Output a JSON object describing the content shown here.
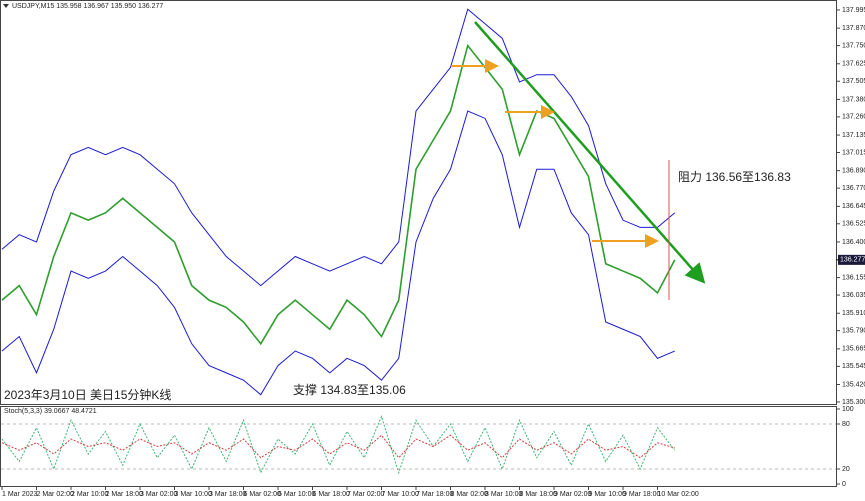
{
  "chart_data": [
    {
      "type": "line",
      "title": "USDJPY,M15  135.958 136.967 135.950 136.277",
      "annotations": [
        "2023年3月10日 美日15分钟K线",
        "支撑 134.83至135.06",
        "阻力 136.56至136.83"
      ],
      "last_price": 136.277,
      "categories": [
        "1 Mar 2023",
        null,
        "2 Mar 02:00",
        null,
        "2 Mar 10:00",
        null,
        "2 Mar 18:00",
        null,
        "3 Mar 02:00",
        null,
        "3 Mar 10:00",
        null,
        "3 Mar 18:00",
        null,
        "6 Mar 02:00",
        null,
        "6 Mar 10:00",
        null,
        "6 Mar 18:00",
        null,
        "7 Mar 02:00",
        null,
        "7 Mar 10:00",
        null,
        "7 Mar 18:00",
        null,
        "8 Mar 02:00",
        null,
        "8 Mar 10:00",
        null,
        "8 Mar 18:00",
        null,
        "9 Mar 02:00",
        null,
        "9 Mar 10:00",
        null,
        "9 Mar 18:00",
        null,
        "10 Mar 02:00",
        null
      ],
      "series": [
        {
          "color": "#2e9e2e",
          "values": [
            136.0,
            136.1,
            135.9,
            136.3,
            136.6,
            136.55,
            136.6,
            136.7,
            136.6,
            136.5,
            136.4,
            136.1,
            136.0,
            135.95,
            135.85,
            135.7,
            135.9,
            136.0,
            135.9,
            135.8,
            136.0,
            135.9,
            135.75,
            136.0,
            136.9,
            137.1,
            137.3,
            137.75,
            137.6,
            137.45,
            137.0,
            137.3,
            137.25,
            137.05,
            136.85,
            136.25,
            136.2,
            136.15,
            136.05,
            136.277
          ]
        },
        {
          "color": "#1a1ad6",
          "values": [
            136.35,
            136.45,
            136.4,
            136.75,
            137.0,
            137.05,
            137.0,
            137.05,
            137.0,
            136.9,
            136.8,
            136.6,
            136.45,
            136.3,
            136.2,
            136.1,
            136.2,
            136.3,
            136.25,
            136.2,
            136.25,
            136.3,
            136.25,
            136.4,
            137.3,
            137.45,
            137.6,
            138.0,
            137.9,
            137.8,
            137.5,
            137.55,
            137.55,
            137.4,
            137.2,
            136.8,
            136.55,
            136.5,
            136.5,
            136.6
          ]
        },
        {
          "color": "#1a1ad6",
          "values": [
            135.65,
            135.75,
            135.5,
            135.8,
            136.2,
            136.15,
            136.2,
            136.3,
            136.2,
            136.1,
            135.95,
            135.7,
            135.55,
            135.5,
            135.45,
            135.35,
            135.55,
            135.65,
            135.6,
            135.5,
            135.6,
            135.55,
            135.45,
            135.6,
            136.4,
            136.7,
            136.9,
            137.3,
            137.25,
            137.0,
            136.5,
            136.9,
            136.9,
            136.6,
            136.45,
            135.85,
            135.8,
            135.75,
            135.6,
            135.65
          ]
        }
      ],
      "ylim": [
        135.286,
        138.036
      ],
      "yticks": [
        137.995,
        {
          "value": 137.87,
          "label": "137.870"
        },
        {
          "value": 137.75,
          "label": "137.750"
        },
        137.625,
        137.505,
        {
          "value": 137.38,
          "label": "137.380"
        },
        {
          "value": 137.26,
          "label": "137.260"
        },
        137.135,
        137.015,
        {
          "value": 136.89,
          "label": "136.890"
        },
        {
          "value": 136.77,
          "label": "136.770"
        },
        136.645,
        136.525,
        {
          "value": 136.4,
          "label": "136.400"
        },
        136.155,
        136.035,
        {
          "value": 135.91,
          "label": "135.910"
        },
        {
          "value": 135.79,
          "label": "135.790"
        },
        135.665,
        135.545,
        {
          "value": 135.42,
          "label": "135.420"
        },
        {
          "value": 135.3,
          "label": "135.300"
        }
      ]
    },
    {
      "type": "line",
      "title": "Stoch(5,3,3) 39.0667 48.4721",
      "series": [
        {
          "color": "#3cb371",
          "values": [
            60,
            30,
            75,
            20,
            85,
            40,
            70,
            25,
            80,
            35,
            65,
            20,
            75,
            30,
            85,
            15,
            60,
            40,
            80,
            25,
            70,
            35,
            90,
            15,
            85,
            50,
            80,
            30,
            75,
            20,
            85,
            35,
            70,
            25,
            80,
            30,
            65,
            20,
            75,
            45
          ]
        },
        {
          "color": "#d43c3c",
          "values": [
            55,
            45,
            55,
            40,
            60,
            50,
            55,
            45,
            60,
            50,
            55,
            40,
            55,
            45,
            60,
            35,
            50,
            45,
            60,
            40,
            55,
            45,
            65,
            35,
            60,
            50,
            65,
            45,
            55,
            35,
            60,
            45,
            55,
            40,
            60,
            45,
            50,
            35,
            55,
            48
          ]
        }
      ],
      "ylim": [
        0,
        100
      ],
      "yticks": [
        100,
        80,
        20,
        0
      ]
    }
  ]
}
